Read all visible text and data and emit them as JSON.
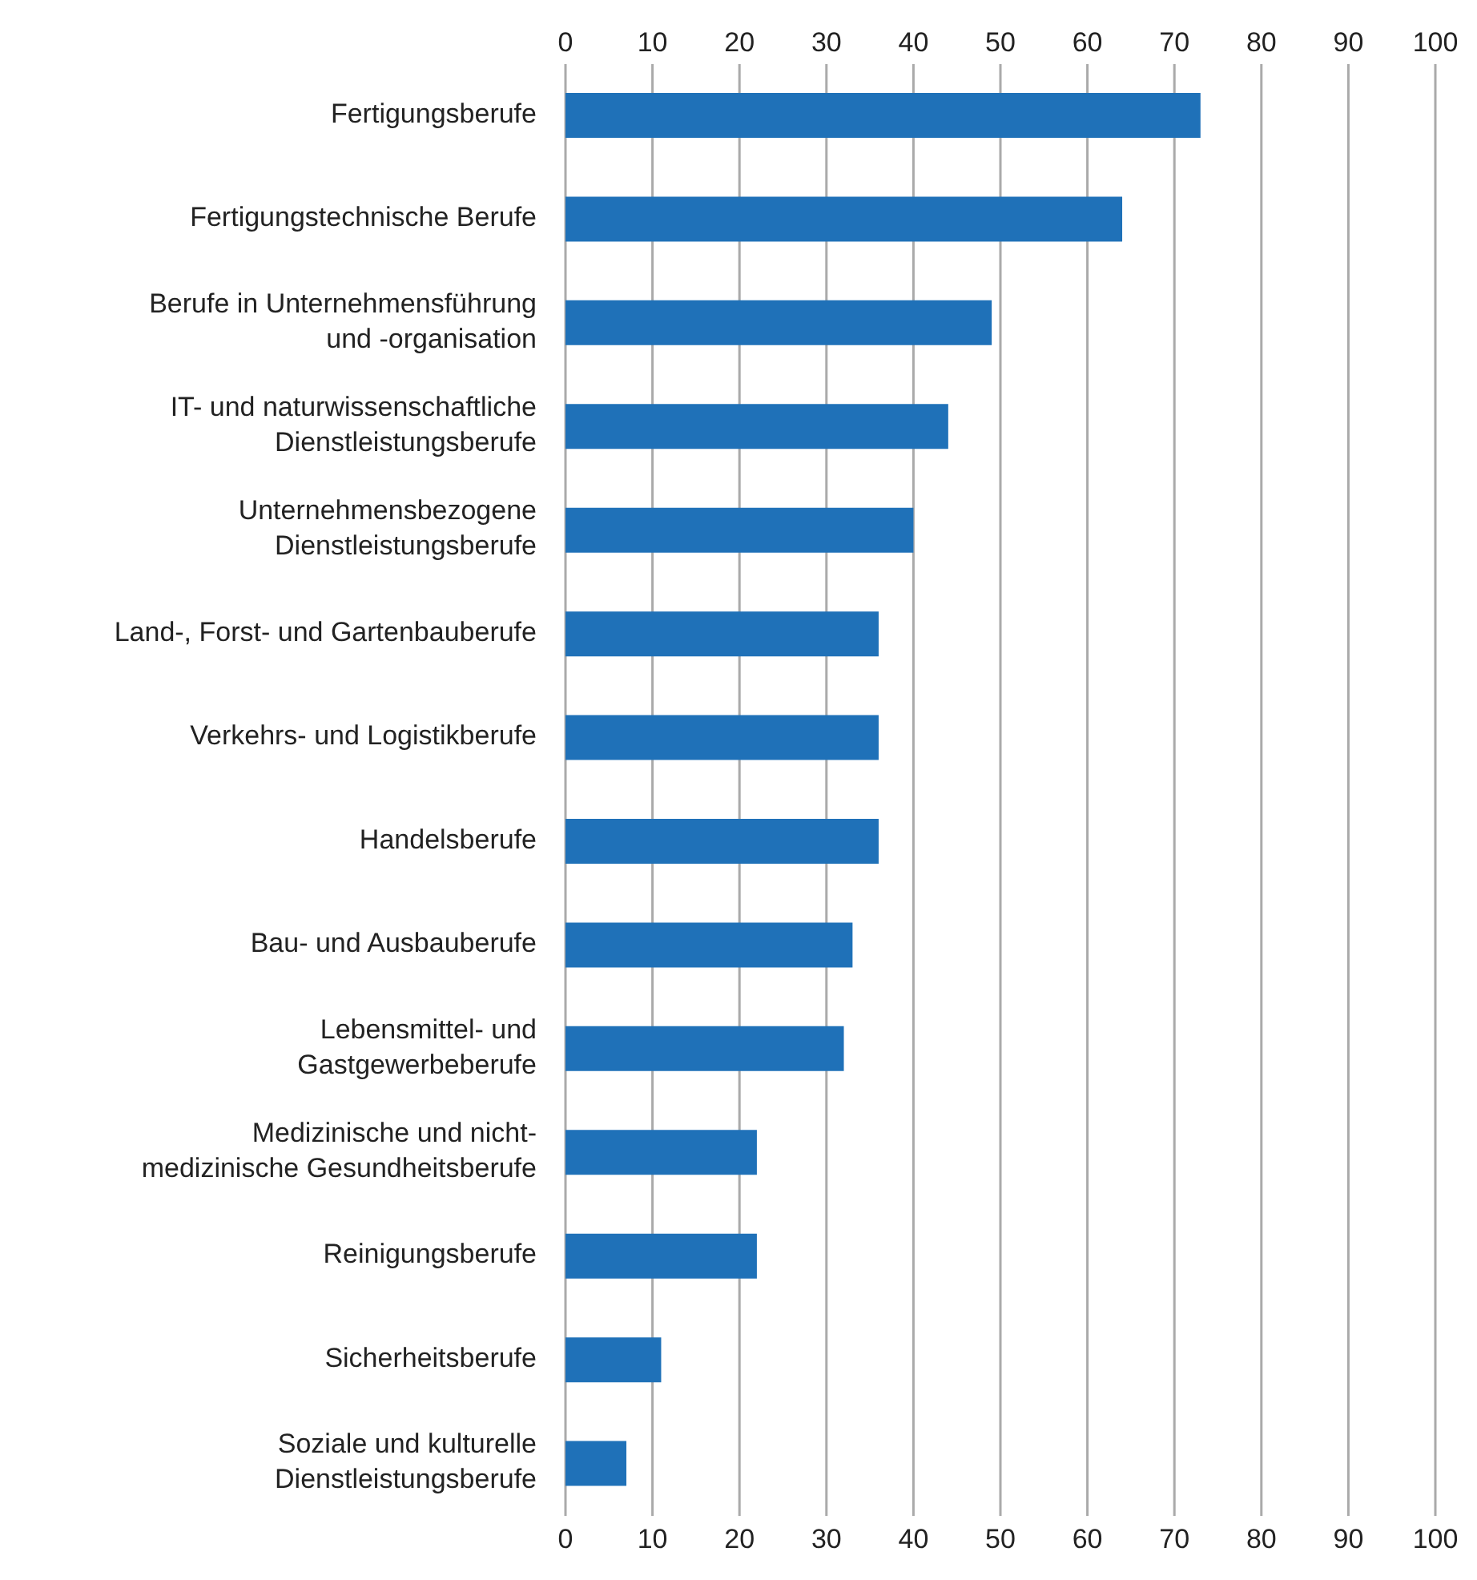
{
  "chart_data": {
    "type": "bar",
    "orientation": "horizontal",
    "categories": [
      "Fertigungsberufe",
      "Fertigungstechnische Berufe",
      "Berufe in Unternehmensführung\nund -organisation",
      "IT- und naturwissenschaftliche\nDienstleistungsberufe",
      "Unternehmensbezogene\nDienstleistungsberufe",
      "Land-, Forst- und Gartenbauberufe",
      "Verkehrs- und Logistikberufe",
      "Handelsberufe",
      "Bau- und Ausbauberufe",
      "Lebensmittel- und\nGastgewerbeberufe",
      "Medizinische und nicht-\nmedizinische Gesundheitsberufe",
      "Reinigungsberufe",
      "Sicherheitsberufe",
      "Soziale und kulturelle\nDienstleistungsberufe"
    ],
    "values": [
      73,
      64,
      49,
      44,
      40,
      36,
      36,
      36,
      33,
      32,
      22,
      22,
      11,
      7
    ],
    "color": "#1f71b8",
    "xlim": [
      0,
      100
    ],
    "xticks": [
      0,
      10,
      20,
      30,
      40,
      50,
      60,
      70,
      80,
      90,
      100
    ],
    "x2lim": [
      0,
      100
    ],
    "x2ticks": [
      0,
      10,
      20,
      30,
      40,
      50,
      60,
      70,
      80,
      90,
      100
    ],
    "grid": "x"
  }
}
